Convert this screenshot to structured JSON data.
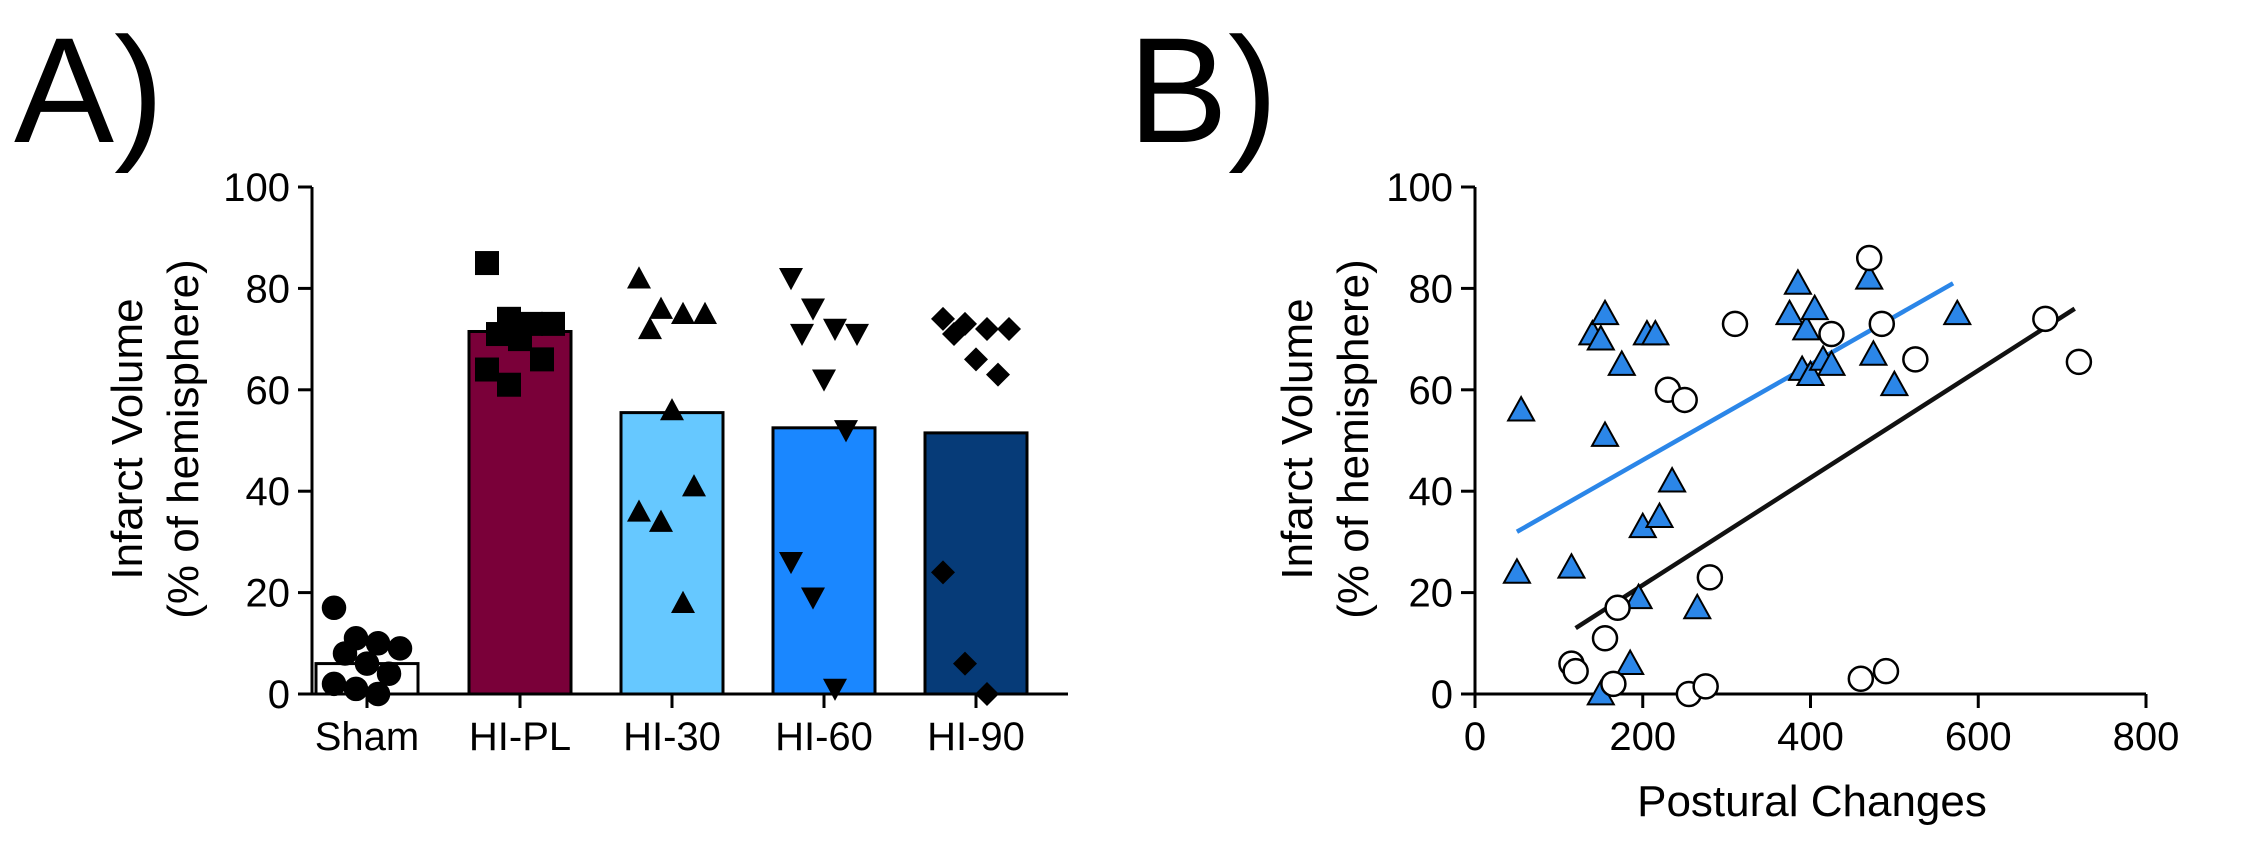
{
  "chart_data": [
    {
      "panel": "A)",
      "type": "bar",
      "ylabel_line1": "Infarct Volume",
      "ylabel_line2": "(% of hemisphere)",
      "ylim": [
        0,
        100
      ],
      "yticks": [
        "0",
        "20",
        "40",
        "60",
        "80",
        "100"
      ],
      "categories": [
        "Sham",
        "HI-PL",
        "HI-30",
        "HI-60",
        "HI-90"
      ],
      "bars": [
        {
          "label": "Sham",
          "mean": 6,
          "color": "#ffffff",
          "marker": "circle",
          "points": [
            17,
            11,
            10,
            9,
            8,
            6,
            4,
            2,
            1,
            0
          ]
        },
        {
          "label": "HI-PL",
          "mean": 71.5,
          "color": "#7a0039",
          "marker": "square",
          "points": [
            85,
            74,
            73,
            73,
            71,
            70,
            66,
            64,
            61
          ]
        },
        {
          "label": "HI-30",
          "mean": 55.5,
          "color": "#66c8ff",
          "marker": "triangle-up",
          "points": [
            82,
            76,
            75,
            75,
            72,
            56,
            41,
            36,
            34,
            18
          ]
        },
        {
          "label": "HI-60",
          "mean": 52.5,
          "color": "#1a87ff",
          "marker": "triangle-down",
          "points": [
            82,
            76,
            72,
            71,
            71,
            62,
            52,
            26,
            19,
            1
          ]
        },
        {
          "label": "HI-90",
          "mean": 51.5,
          "color": "#063b78",
          "marker": "diamond",
          "points": [
            74,
            73,
            72,
            72,
            71,
            66,
            63,
            24,
            6,
            0
          ]
        }
      ]
    },
    {
      "panel": "B)",
      "type": "scatter",
      "xlabel": "Postural Changes",
      "ylabel_line1": "Infarct Volume",
      "ylabel_line2": "(% of hemisphere)",
      "xlim": [
        0,
        800
      ],
      "ylim": [
        0,
        100
      ],
      "xticks": [
        "0",
        "200",
        "400",
        "600",
        "800"
      ],
      "yticks": [
        "0",
        "20",
        "40",
        "60",
        "80",
        "100"
      ],
      "series": [
        {
          "marker": "triangle",
          "color": "#2b86e8",
          "points": [
            [
              50,
              24
            ],
            [
              55,
              56
            ],
            [
              115,
              25
            ],
            [
              140,
              71
            ],
            [
              150,
              70
            ],
            [
              155,
              75
            ],
            [
              155,
              51
            ],
            [
              150,
              0
            ],
            [
              175,
              65
            ],
            [
              185,
              6
            ],
            [
              195,
              19
            ],
            [
              200,
              33
            ],
            [
              205,
              71
            ],
            [
              215,
              71
            ],
            [
              220,
              35
            ],
            [
              235,
              42
            ],
            [
              265,
              17
            ],
            [
              375,
              75
            ],
            [
              385,
              81
            ],
            [
              390,
              64
            ],
            [
              395,
              72
            ],
            [
              400,
              63
            ],
            [
              405,
              76
            ],
            [
              415,
              66
            ],
            [
              425,
              65
            ],
            [
              470,
              82
            ],
            [
              475,
              67
            ],
            [
              500,
              61
            ],
            [
              575,
              75
            ]
          ],
          "fit": [
            [
              50,
              32
            ],
            [
              570,
              81
            ]
          ]
        },
        {
          "marker": "circle",
          "color": "#ffffff",
          "points": [
            [
              115,
              6
            ],
            [
              120,
              4.5
            ],
            [
              155,
              11
            ],
            [
              165,
              2
            ],
            [
              170,
              17
            ],
            [
              230,
              60
            ],
            [
              250,
              58
            ],
            [
              255,
              0
            ],
            [
              275,
              1.5
            ],
            [
              280,
              23
            ],
            [
              310,
              73
            ],
            [
              425,
              71
            ],
            [
              460,
              3
            ],
            [
              470,
              86
            ],
            [
              485,
              73
            ],
            [
              490,
              4.5
            ],
            [
              525,
              66
            ],
            [
              680,
              74
            ],
            [
              720,
              65.5
            ]
          ],
          "fit": [
            [
              120,
              13
            ],
            [
              715,
              76
            ]
          ]
        }
      ]
    }
  ]
}
